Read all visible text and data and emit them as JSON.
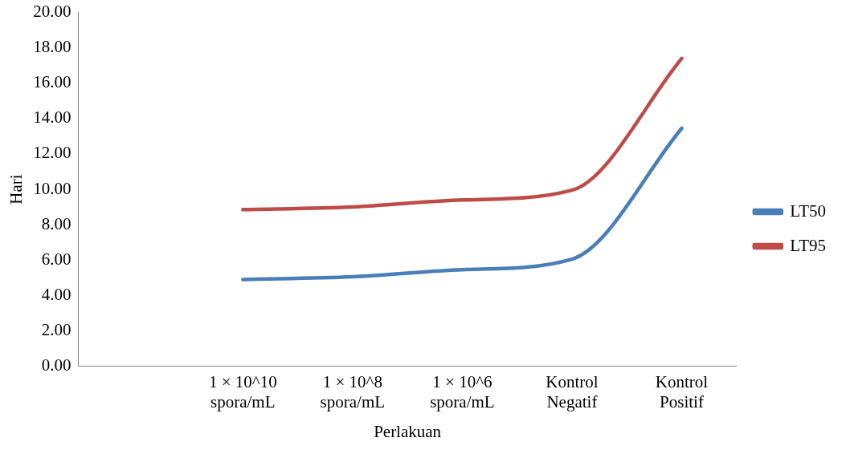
{
  "chart_data": {
    "type": "line",
    "xlabel": "Perlakuan",
    "ylabel": "Hari",
    "categories": [
      null,
      "1 × 10^10 spora/mL",
      "1 × 10^8 spora/mL",
      "1 × 10^6 spora/mL",
      "Kontrol Negatif",
      "Kontrol Positif"
    ],
    "series": [
      {
        "name": "LT50",
        "color": "#4a7ebb",
        "values": [
          null,
          4.9,
          5.05,
          5.45,
          6.05,
          13.45
        ]
      },
      {
        "name": "LT95",
        "color": "#be4b48",
        "values": [
          null,
          8.85,
          9.0,
          9.4,
          9.95,
          17.4
        ]
      }
    ],
    "ylim": [
      0,
      20
    ],
    "yticks": [
      {
        "value": 0,
        "label": "0.00"
      },
      {
        "value": 2,
        "label": "2.00"
      },
      {
        "value": 4,
        "label": "4.00"
      },
      {
        "value": 6,
        "label": "6.00"
      },
      {
        "value": 8,
        "label": "8.00"
      },
      {
        "value": 10,
        "label": "10.00"
      },
      {
        "value": 12,
        "label": "12.00"
      },
      {
        "value": 14,
        "label": "14.00"
      },
      {
        "value": 16,
        "label": "16.00"
      },
      {
        "value": 18,
        "label": "18.00"
      },
      {
        "value": 20,
        "label": "20.00"
      }
    ],
    "grid": false,
    "legend": "right",
    "marker": "none",
    "line_style": "solid"
  }
}
